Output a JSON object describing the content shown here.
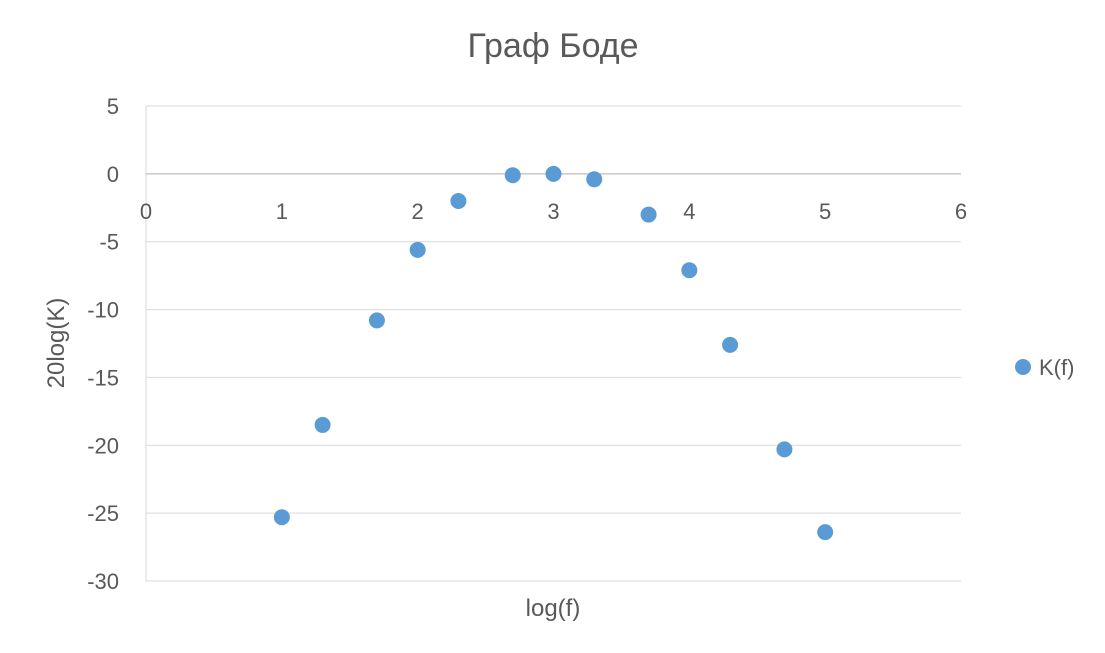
{
  "chart_data": {
    "type": "scatter",
    "title": "Граф Боде",
    "xlabel": "log(f)",
    "ylabel": "20log(K)",
    "xlim": [
      0,
      6
    ],
    "ylim": [
      -30,
      5
    ],
    "xticks": [
      "0",
      "1",
      "2",
      "3",
      "4",
      "5",
      "6"
    ],
    "yticks": [
      "5",
      "0",
      "-5",
      "-10",
      "-15",
      "-20",
      "-25",
      "-30"
    ],
    "grid": "horizontal",
    "legend_position": "right",
    "color": "#5b9bd5",
    "series": [
      {
        "name": "K(f)",
        "points": [
          {
            "x": 1.0,
            "y": -25.3
          },
          {
            "x": 1.3,
            "y": -18.5
          },
          {
            "x": 1.7,
            "y": -10.8
          },
          {
            "x": 2.0,
            "y": -5.6
          },
          {
            "x": 2.3,
            "y": -2.0
          },
          {
            "x": 2.7,
            "y": -0.1
          },
          {
            "x": 3.0,
            "y": 0.0
          },
          {
            "x": 3.3,
            "y": -0.4
          },
          {
            "x": 3.7,
            "y": -3.0
          },
          {
            "x": 4.0,
            "y": -7.1
          },
          {
            "x": 4.3,
            "y": -12.6
          },
          {
            "x": 4.7,
            "y": -20.3
          },
          {
            "x": 5.0,
            "y": -26.4
          }
        ]
      }
    ]
  }
}
